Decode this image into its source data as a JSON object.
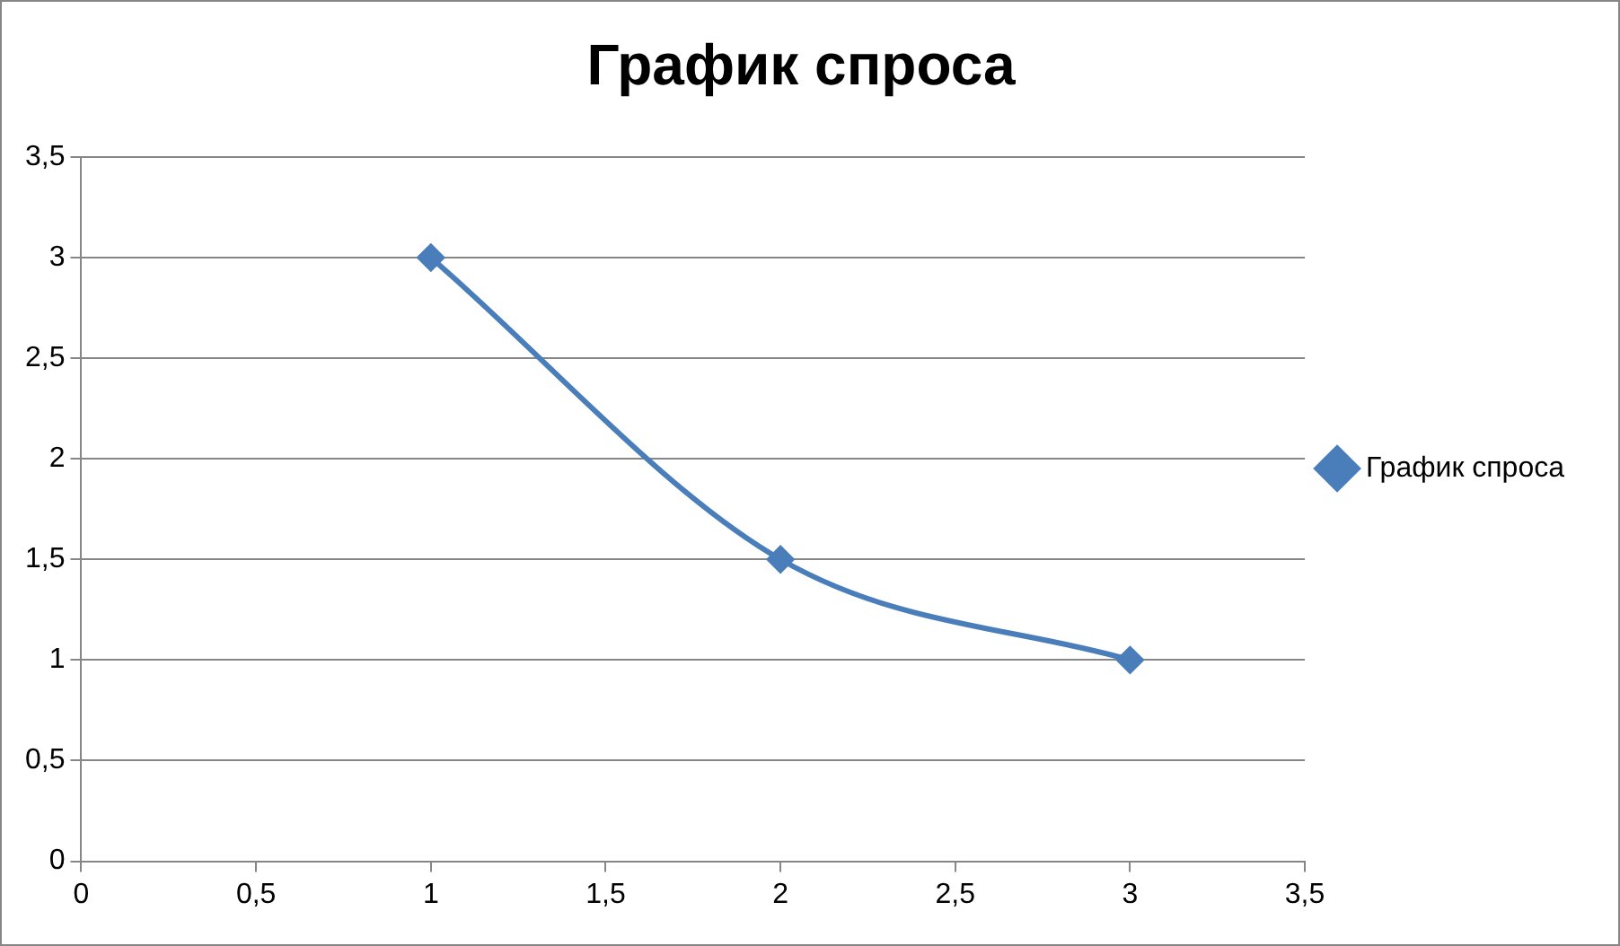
{
  "chart_data": {
    "type": "line",
    "title": "График спроса",
    "x": [
      1,
      2,
      3
    ],
    "series": [
      {
        "name": "График спроса",
        "color": "#4a7ebb",
        "values": [
          3,
          1.5,
          1
        ]
      }
    ],
    "xlim": [
      0,
      3.5
    ],
    "xticks": [
      0,
      {
        "value": 0.5,
        "label": "0,5"
      },
      1,
      {
        "value": 1.5,
        "label": "1,5"
      },
      2,
      {
        "value": 2.5,
        "label": "2,5"
      },
      3,
      {
        "value": 3.5,
        "label": "3,5"
      }
    ],
    "ylim": [
      0,
      3.5
    ],
    "yticks": [
      0,
      {
        "value": 0.5,
        "label": "0,5"
      },
      1,
      {
        "value": 1.5,
        "label": "1,5"
      },
      2,
      {
        "value": 2.5,
        "label": "2,5"
      },
      3,
      {
        "value": 3.5,
        "label": "3,5"
      }
    ],
    "grid": "y",
    "legend": "right",
    "marker": "diamond",
    "line_style": "solid"
  }
}
